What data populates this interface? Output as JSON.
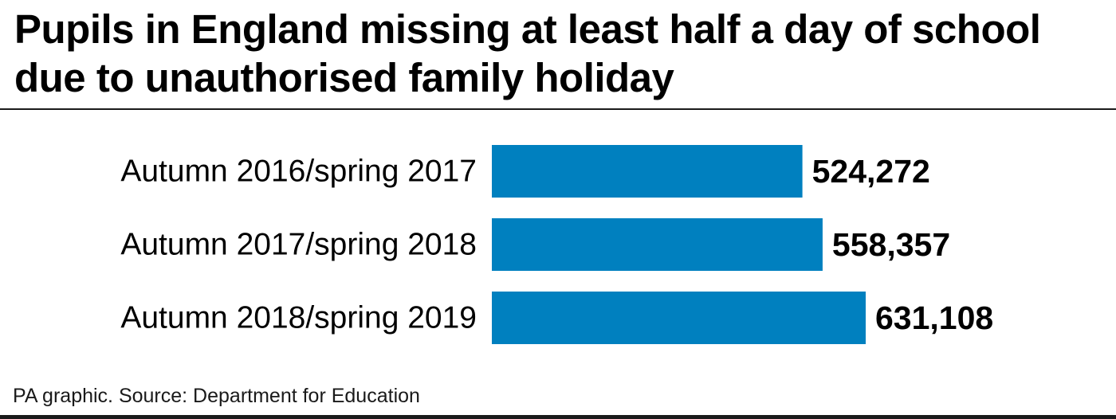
{
  "chart_data": {
    "type": "bar",
    "orientation": "horizontal",
    "title": "Pupils in England missing at least half a day of school due to unauthorised family holiday",
    "categories": [
      "Autumn 2016/spring 2017",
      "Autumn 2017/spring 2018",
      "Autumn 2018/spring 2019"
    ],
    "values": [
      524272,
      558357,
      631108
    ],
    "value_labels": [
      "524,272",
      "558,357",
      "631,108"
    ],
    "xlim": [
      0,
      631108
    ],
    "grid": false,
    "legend": "none",
    "bar_color": "#0080bf",
    "source": "PA graphic. Source: Department for Education"
  }
}
